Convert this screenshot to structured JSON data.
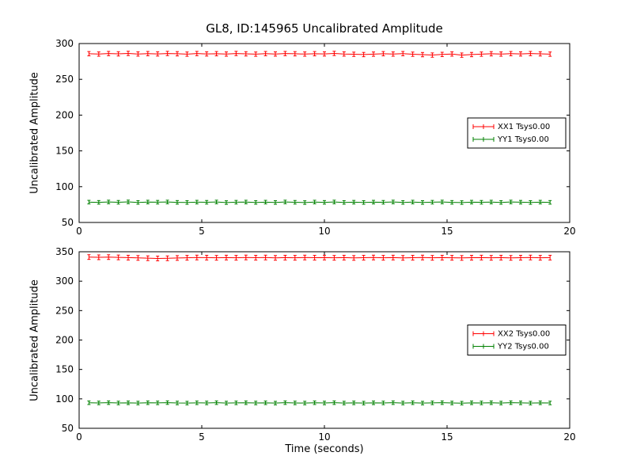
{
  "title": "GL8, ID:145965 Uncalibrated Amplitude",
  "colors": {
    "xx_series": "#ff0000",
    "yy_series": "#008000",
    "axes": "#000000",
    "background": "#ffffff"
  },
  "chart_data": [
    {
      "type": "line",
      "ylabel": "Uncalibrated Amplitude",
      "xlim": [
        0,
        20
      ],
      "ylim": [
        50,
        300
      ],
      "xticks": [
        0,
        5,
        10,
        15,
        20
      ],
      "yticks": [
        50,
        100,
        150,
        200,
        250,
        300
      ],
      "grid": false,
      "legend_position": "center right",
      "x": [
        0.4,
        0.8,
        1.2,
        1.6,
        2.0,
        2.4,
        2.8,
        3.2,
        3.6,
        4.0,
        4.4,
        4.8,
        5.2,
        5.6,
        6.0,
        6.4,
        6.8,
        7.2,
        7.6,
        8.0,
        8.4,
        8.8,
        9.2,
        9.6,
        10.0,
        10.4,
        10.8,
        11.2,
        11.6,
        12.0,
        12.4,
        12.8,
        13.2,
        13.6,
        14.0,
        14.4,
        14.8,
        15.2,
        15.6,
        16.0,
        16.4,
        16.8,
        17.2,
        17.6,
        18.0,
        18.4,
        18.8,
        19.2
      ],
      "series": [
        {
          "name": "XX1 Tsys0.00",
          "color": "#ff0000",
          "yerr": 3.0,
          "values": [
            285.8,
            285.3,
            286.0,
            285.6,
            286.2,
            285.4,
            285.9,
            285.5,
            286.1,
            285.7,
            285.2,
            286.0,
            285.5,
            285.8,
            285.3,
            286.1,
            285.6,
            285.2,
            285.9,
            285.4,
            286.0,
            285.7,
            285.3,
            285.8,
            285.5,
            286.2,
            285.4,
            285.0,
            284.6,
            285.2,
            285.8,
            285.3,
            285.9,
            285.1,
            284.5,
            283.9,
            284.8,
            285.4,
            283.8,
            284.6,
            285.2,
            285.7,
            285.3,
            285.9,
            285.5,
            286.0,
            285.6,
            285.2
          ]
        },
        {
          "name": "YY1 Tsys0.00",
          "color": "#008000",
          "yerr": 2.5,
          "values": [
            78.4,
            78.1,
            78.6,
            78.2,
            78.7,
            78.0,
            78.5,
            78.3,
            78.6,
            78.1,
            77.9,
            78.4,
            78.2,
            78.6,
            77.8,
            78.3,
            78.5,
            78.0,
            78.4,
            77.9,
            78.6,
            78.2,
            77.8,
            78.5,
            78.1,
            78.6,
            78.0,
            78.3,
            77.9,
            78.4,
            78.2,
            78.6,
            78.0,
            78.5,
            77.9,
            78.3,
            78.6,
            78.1,
            77.8,
            78.4,
            78.2,
            78.5,
            78.0,
            78.6,
            78.3,
            77.9,
            78.4,
            78.1
          ]
        }
      ]
    },
    {
      "type": "line",
      "ylabel": "Uncalibrated Amplitude",
      "xlabel": "Time (seconds)",
      "xlim": [
        0,
        20
      ],
      "ylim": [
        50,
        350
      ],
      "xticks": [
        0,
        5,
        10,
        15,
        20
      ],
      "yticks": [
        50,
        100,
        150,
        200,
        250,
        300,
        350
      ],
      "grid": false,
      "legend_position": "center right",
      "x": [
        0.4,
        0.8,
        1.2,
        1.6,
        2.0,
        2.4,
        2.8,
        3.2,
        3.6,
        4.0,
        4.4,
        4.8,
        5.2,
        5.6,
        6.0,
        6.4,
        6.8,
        7.2,
        7.6,
        8.0,
        8.4,
        8.8,
        9.2,
        9.6,
        10.0,
        10.4,
        10.8,
        11.2,
        11.6,
        12.0,
        12.4,
        12.8,
        13.2,
        13.6,
        14.0,
        14.4,
        14.8,
        15.2,
        15.6,
        16.0,
        16.4,
        16.8,
        17.2,
        17.6,
        18.0,
        18.4,
        18.8,
        19.2
      ],
      "series": [
        {
          "name": "XX2 Tsys0.00",
          "color": "#ff0000",
          "yerr": 4.0,
          "values": [
            341.0,
            340.6,
            340.9,
            340.4,
            340.0,
            339.5,
            339.0,
            338.6,
            338.9,
            339.4,
            339.8,
            340.2,
            340.0,
            339.7,
            340.1,
            339.8,
            340.3,
            339.9,
            340.2,
            339.6,
            340.0,
            339.8,
            340.2,
            339.9,
            340.1,
            339.7,
            340.0,
            339.5,
            339.9,
            340.2,
            339.8,
            340.1,
            339.6,
            339.9,
            340.2,
            339.7,
            340.0,
            339.8,
            339.5,
            339.9,
            340.1,
            339.7,
            340.0,
            339.6,
            339.9,
            340.2,
            339.8,
            340.0
          ]
        },
        {
          "name": "YY2 Tsys0.00",
          "color": "#008000",
          "yerr": 3.0,
          "values": [
            93.4,
            93.1,
            93.5,
            93.0,
            93.3,
            92.9,
            93.4,
            93.2,
            93.6,
            93.0,
            92.8,
            93.3,
            93.1,
            93.5,
            92.9,
            93.2,
            93.4,
            93.0,
            93.3,
            92.8,
            93.5,
            93.1,
            92.9,
            93.4,
            93.0,
            93.5,
            92.9,
            93.2,
            92.8,
            93.3,
            93.1,
            93.5,
            92.9,
            93.4,
            92.8,
            93.2,
            93.5,
            93.0,
            92.7,
            93.3,
            93.1,
            93.4,
            92.9,
            93.5,
            93.2,
            92.8,
            93.3,
            93.0
          ]
        }
      ]
    }
  ]
}
